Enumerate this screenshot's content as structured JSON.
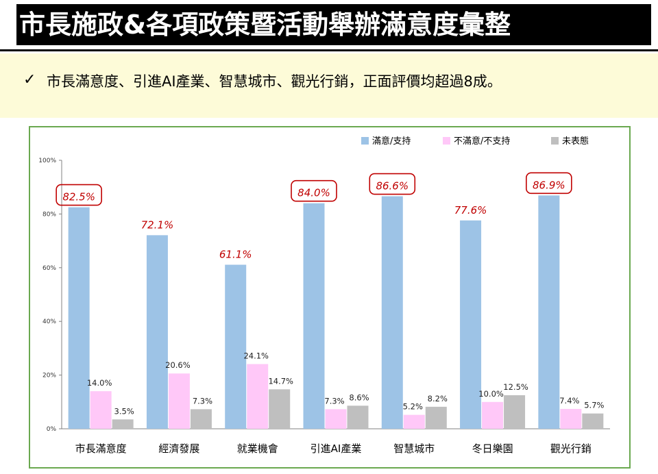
{
  "slide": {
    "title": "市長施政&各項政策暨活動舉辦滿意度彙整",
    "summary_check": "✓",
    "summary": "市長滿意度、引進AI產業、智慧城市、觀光行銷，正面評價均超過8成。"
  },
  "chart_data": {
    "type": "bar",
    "categories": [
      "市長滿意度",
      "經濟發展",
      "就業機會",
      "引進AI產業",
      "智慧城市",
      "冬日樂園",
      "觀光行銷"
    ],
    "series": [
      {
        "name": "滿意/支持",
        "color": "#9dc3e6",
        "values": [
          82.5,
          72.1,
          61.1,
          84.0,
          86.6,
          77.6,
          86.9
        ],
        "labels": [
          "82.5%",
          "72.1%",
          "61.1%",
          "84.0%",
          "86.6%",
          "77.6%",
          "86.9%"
        ]
      },
      {
        "name": "不滿意/不支持",
        "color": "#ffc8f8",
        "values": [
          14.0,
          20.6,
          24.1,
          7.3,
          5.2,
          10.0,
          7.4
        ],
        "labels": [
          "14.0%",
          "20.6%",
          "24.1%",
          "7.3%",
          "5.2%",
          "10.0%",
          "7.4%"
        ]
      },
      {
        "name": "未表態",
        "color": "#bfbfbf",
        "values": [
          3.5,
          7.3,
          14.7,
          8.6,
          8.2,
          12.5,
          5.7
        ],
        "labels": [
          "3.5%",
          "7.3%",
          "14.7%",
          "8.6%",
          "8.2%",
          "12.5%",
          "5.7%"
        ]
      }
    ],
    "y_ticks": [
      "0%",
      "20%",
      "40%",
      "60%",
      "80%",
      "100%"
    ],
    "ylim": [
      0,
      100
    ],
    "grid": false,
    "legend": "top-right",
    "highlighted_categories": [
      "市長滿意度",
      "引進AI產業",
      "智慧城市",
      "觀光行銷"
    ],
    "primary_label_color": "#c00000"
  }
}
